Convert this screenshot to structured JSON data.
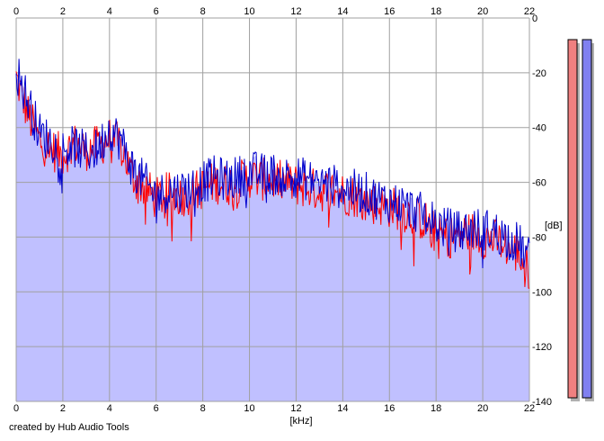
{
  "credit": "created by Hub Audio Tools",
  "colors": {
    "background": "#ffffff",
    "plot_background": "#ffffff",
    "grid": "#a0a0a0",
    "fill": "#c0c0ff",
    "left_channel": "#ff0000",
    "right_channel": "#0000cc",
    "meter_left": "#f08080",
    "meter_right": "#8080f0"
  },
  "chart_data": {
    "type": "area",
    "title": "",
    "xlabel": "[kHz]",
    "ylabel": "[dB]",
    "xlim": [
      0,
      22
    ],
    "ylim": [
      -140,
      0
    ],
    "grid": true,
    "x_ticks": [
      0,
      2,
      4,
      6,
      8,
      10,
      12,
      14,
      16,
      18,
      20,
      22
    ],
    "y_ticks": [
      0,
      -20,
      -40,
      -60,
      -80,
      -100,
      -120,
      -140
    ],
    "x": [
      0,
      0.5,
      1,
      1.5,
      2,
      2.5,
      3,
      3.5,
      4,
      4.5,
      5,
      5.5,
      6,
      6.5,
      7,
      7.5,
      8,
      8.5,
      9,
      9.5,
      10,
      10.5,
      11,
      11.5,
      12,
      12.5,
      13,
      13.5,
      14,
      14.5,
      15,
      15.5,
      16,
      16.5,
      17,
      17.5,
      18,
      18.5,
      19,
      19.5,
      20,
      20.5,
      21,
      21.5,
      22
    ],
    "series": [
      {
        "channel": "left",
        "values": [
          -22,
          -35,
          -45,
          -48,
          -50,
          -46,
          -48,
          -47,
          -44,
          -47,
          -58,
          -62,
          -66,
          -64,
          -65,
          -64,
          -62,
          -60,
          -61,
          -60,
          -58,
          -59,
          -59,
          -60,
          -61,
          -62,
          -63,
          -63,
          -64,
          -65,
          -67,
          -68,
          -69,
          -70,
          -72,
          -74,
          -79,
          -80,
          -79,
          -78,
          -80,
          -81,
          -83,
          -86,
          -92
        ]
      },
      {
        "channel": "right",
        "values": [
          -19,
          -30,
          -42,
          -45,
          -48,
          -47,
          -49,
          -48,
          -40,
          -45,
          -55,
          -60,
          -65,
          -63,
          -63,
          -62,
          -60,
          -58,
          -59,
          -58,
          -56,
          -57,
          -57,
          -58,
          -58,
          -59,
          -60,
          -61,
          -62,
          -63,
          -64,
          -66,
          -67,
          -68,
          -70,
          -72,
          -75,
          -77,
          -78,
          -77,
          -77,
          -78,
          -80,
          -82,
          -88
        ]
      }
    ]
  },
  "level_meters": [
    {
      "channel": "left",
      "level_db": 0
    },
    {
      "channel": "right",
      "level_db": 0
    }
  ]
}
